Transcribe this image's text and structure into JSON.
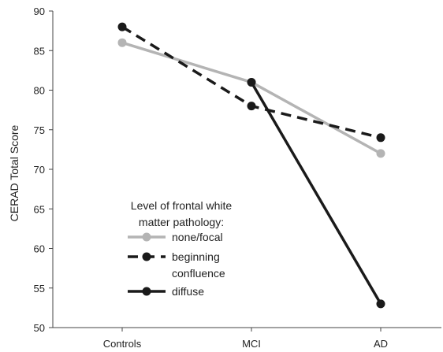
{
  "chart_data": {
    "type": "line",
    "title": "",
    "xlabel": "",
    "ylabel": "CERAD Total Score",
    "categories": [
      "Controls",
      "MCI",
      "AD"
    ],
    "ylim": [
      50,
      90
    ],
    "yticks": [
      50,
      55,
      60,
      65,
      70,
      75,
      80,
      85,
      90
    ],
    "grid": false,
    "legend_title_lines": [
      "Level of frontal white",
      "matter pathology:"
    ],
    "legend_entries": [
      {
        "label_lines": [
          "none/focal"
        ]
      },
      {
        "label_lines": [
          "beginning",
          "confluence"
        ]
      },
      {
        "label_lines": [
          "diffuse"
        ]
      }
    ],
    "legend_position": "bottom-left",
    "series": [
      {
        "name": "none/focal",
        "values": [
          86,
          81,
          72
        ],
        "color": "#b4b4b4",
        "dash": "solid"
      },
      {
        "name": "beginning confluence",
        "values": [
          88,
          78,
          74
        ],
        "color": "#1a1a1a",
        "dash": "dashed"
      },
      {
        "name": "diffuse",
        "values": [
          null,
          81,
          53
        ],
        "color": "#1a1a1a",
        "dash": "solid"
      }
    ]
  }
}
